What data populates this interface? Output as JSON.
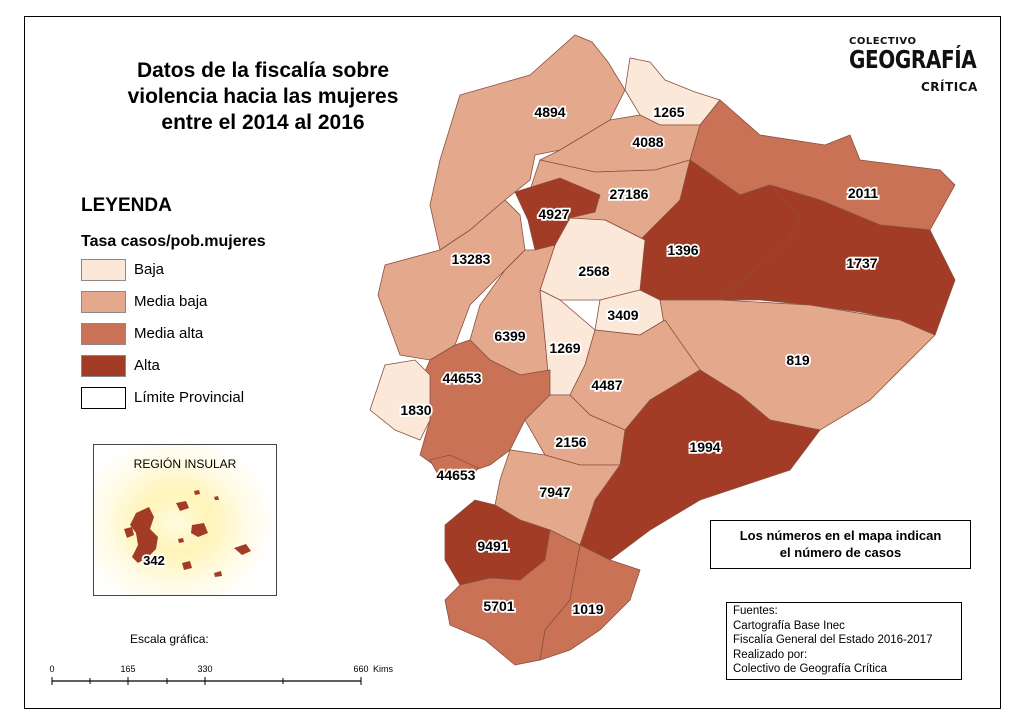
{
  "title": {
    "line1": "Datos de la fiscalía sobre",
    "line2": "violencia hacia las mujeres",
    "line3": "entre el 2014 al 2016"
  },
  "brand": {
    "top": "COLECTIVO",
    "middle": "GEOGRAFÍA",
    "bottom": "CRÍTICA"
  },
  "legend": {
    "title": "LEYENDA",
    "subtitle": "Tasa casos/pob.mujeres",
    "items": [
      {
        "label": "Baja",
        "color": "#fbe8d8"
      },
      {
        "label": "Media baja",
        "color": "#e4a98c"
      },
      {
        "label": "Media alta",
        "color": "#c97256"
      },
      {
        "label": "Alta",
        "color": "#a23c26"
      },
      {
        "label": "Límite Provincial",
        "color": "#ffffff"
      }
    ]
  },
  "insular": {
    "title": "REGIÓN INSULAR",
    "value": "342",
    "color": "#a23c26"
  },
  "scale": {
    "title": "Escala gráfica:",
    "ticks": [
      "0",
      "165",
      "330",
      "660"
    ],
    "unit": "Kims"
  },
  "note": {
    "line1": "Los números en el mapa indican",
    "line2": "el número de casos"
  },
  "sources": {
    "line1": "Fuentes:",
    "line2": "Cartografía Base Inec",
    "line3": "Fiscalía General del Estado 2016-2017",
    "line4": "Realizado por:",
    "line5": "Colectivo de Geografía Crítica"
  },
  "provinces": [
    {
      "value": "4894",
      "class": "Media baja"
    },
    {
      "value": "1265",
      "class": "Baja"
    },
    {
      "value": "4088",
      "class": "Media baja"
    },
    {
      "value": "2011",
      "class": "Media alta"
    },
    {
      "value": "27186",
      "class": "Media baja"
    },
    {
      "value": "4927",
      "class": "Alta"
    },
    {
      "value": "13283",
      "class": "Media baja"
    },
    {
      "value": "2568",
      "class": "Baja"
    },
    {
      "value": "1396",
      "class": "Alta"
    },
    {
      "value": "1737",
      "class": "Alta"
    },
    {
      "value": "3409",
      "class": "Baja"
    },
    {
      "value": "6399",
      "class": "Media baja"
    },
    {
      "value": "1269",
      "class": "Baja"
    },
    {
      "value": "44653",
      "class": "Media alta"
    },
    {
      "value": "819",
      "class": "Media baja"
    },
    {
      "value": "1830",
      "class": "Baja"
    },
    {
      "value": "4487",
      "class": "Media baja"
    },
    {
      "value": "2156",
      "class": "Media baja"
    },
    {
      "value": "1994",
      "class": "Alta"
    },
    {
      "value": "44653",
      "class": "Media alta"
    },
    {
      "value": "7947",
      "class": "Media baja"
    },
    {
      "value": "9491",
      "class": "Alta"
    },
    {
      "value": "5701",
      "class": "Media alta"
    },
    {
      "value": "1019",
      "class": "Media alta"
    }
  ]
}
